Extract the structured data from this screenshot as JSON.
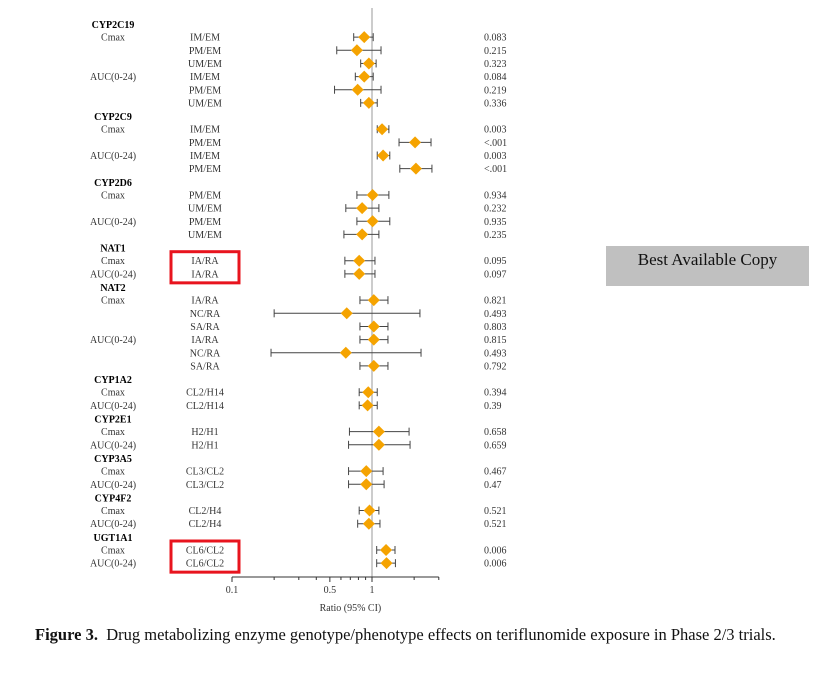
{
  "chart_data": {
    "type": "forest",
    "title": "",
    "xlabel": "Ratio (95% CI)",
    "xscale": "log",
    "xlim": [
      0.1,
      3
    ],
    "reference_line": 1,
    "x_tick_labels": [
      {
        "value": 0.1,
        "label": "0.1"
      },
      {
        "value": 0.5,
        "label": "0.5"
      },
      {
        "value": 1,
        "label": "1"
      }
    ],
    "x_minor_ticks": [
      0.2,
      0.3,
      0.4,
      0.6,
      0.7,
      0.8,
      0.9,
      2,
      3
    ],
    "groups": [
      {
        "gene": "CYP2C19",
        "rows": [
          {
            "param": "Cmax",
            "comparison": "IM/EM",
            "ratio": 0.88,
            "lo": 0.74,
            "hi": 1.02,
            "p": "0.083"
          },
          {
            "param": "",
            "comparison": "PM/EM",
            "ratio": 0.78,
            "lo": 0.56,
            "hi": 1.16,
            "p": "0.215"
          },
          {
            "param": "",
            "comparison": "UM/EM",
            "ratio": 0.95,
            "lo": 0.83,
            "hi": 1.07,
            "p": "0.323"
          },
          {
            "param": "AUC(0-24)",
            "comparison": "IM/EM",
            "ratio": 0.88,
            "lo": 0.76,
            "hi": 1.02,
            "p": "0.084"
          },
          {
            "param": "",
            "comparison": "PM/EM",
            "ratio": 0.79,
            "lo": 0.54,
            "hi": 1.16,
            "p": "0.219"
          },
          {
            "param": "",
            "comparison": "UM/EM",
            "ratio": 0.95,
            "lo": 0.83,
            "hi": 1.09,
            "p": "0.336"
          }
        ]
      },
      {
        "gene": "CYP2C9",
        "rows": [
          {
            "param": "Cmax",
            "comparison": "IM/EM",
            "ratio": 1.18,
            "lo": 1.09,
            "hi": 1.32,
            "p": "0.003"
          },
          {
            "param": "",
            "comparison": "PM/EM",
            "ratio": 2.03,
            "lo": 1.56,
            "hi": 2.64,
            "p": "<.001"
          },
          {
            "param": "AUC(0-24)",
            "comparison": "IM/EM",
            "ratio": 1.2,
            "lo": 1.09,
            "hi": 1.34,
            "p": "0.003"
          },
          {
            "param": "",
            "comparison": "PM/EM",
            "ratio": 2.06,
            "lo": 1.58,
            "hi": 2.68,
            "p": "<.001"
          }
        ]
      },
      {
        "gene": "CYP2D6",
        "rows": [
          {
            "param": "Cmax",
            "comparison": "PM/EM",
            "ratio": 1.01,
            "lo": 0.78,
            "hi": 1.32,
            "p": "0.934"
          },
          {
            "param": "",
            "comparison": "UM/EM",
            "ratio": 0.85,
            "lo": 0.65,
            "hi": 1.12,
            "p": "0.232"
          },
          {
            "param": "AUC(0-24)",
            "comparison": "PM/EM",
            "ratio": 1.01,
            "lo": 0.78,
            "hi": 1.34,
            "p": "0.935"
          },
          {
            "param": "",
            "comparison": "UM/EM",
            "ratio": 0.85,
            "lo": 0.63,
            "hi": 1.12,
            "p": "0.235"
          }
        ]
      },
      {
        "gene": "NAT1",
        "highlight": true,
        "rows": [
          {
            "param": "Cmax",
            "comparison": "IA/RA",
            "ratio": 0.81,
            "lo": 0.64,
            "hi": 1.05,
            "p": "0.095"
          },
          {
            "param": "AUC(0-24)",
            "comparison": "IA/RA",
            "ratio": 0.81,
            "lo": 0.64,
            "hi": 1.05,
            "p": "0.097"
          }
        ]
      },
      {
        "gene": "NAT2",
        "rows": [
          {
            "param": "Cmax",
            "comparison": "IA/RA",
            "ratio": 1.03,
            "lo": 0.82,
            "hi": 1.3,
            "p": "0.821"
          },
          {
            "param": "",
            "comparison": "NC/RA",
            "ratio": 0.66,
            "lo": 0.2,
            "hi": 2.2,
            "p": "0.493"
          },
          {
            "param": "",
            "comparison": "SA/RA",
            "ratio": 1.03,
            "lo": 0.82,
            "hi": 1.3,
            "p": "0.803"
          },
          {
            "param": "AUC(0-24)",
            "comparison": "IA/RA",
            "ratio": 1.03,
            "lo": 0.82,
            "hi": 1.3,
            "p": "0.815"
          },
          {
            "param": "",
            "comparison": "NC/RA",
            "ratio": 0.65,
            "lo": 0.19,
            "hi": 2.24,
            "p": "0.493"
          },
          {
            "param": "",
            "comparison": "SA/RA",
            "ratio": 1.03,
            "lo": 0.82,
            "hi": 1.3,
            "p": "0.792"
          }
        ]
      },
      {
        "gene": "CYP1A2",
        "rows": [
          {
            "param": "Cmax",
            "comparison": "CL2/H14",
            "ratio": 0.94,
            "lo": 0.81,
            "hi": 1.09,
            "p": "0.394"
          },
          {
            "param": "AUC(0-24)",
            "comparison": "CL2/H14",
            "ratio": 0.93,
            "lo": 0.81,
            "hi": 1.09,
            "p": "0.39"
          }
        ]
      },
      {
        "gene": "CYP2E1",
        "rows": [
          {
            "param": "Cmax",
            "comparison": "H2/H1",
            "ratio": 1.12,
            "lo": 0.69,
            "hi": 1.84,
            "p": "0.658"
          },
          {
            "param": "AUC(0-24)",
            "comparison": "H2/H1",
            "ratio": 1.12,
            "lo": 0.68,
            "hi": 1.87,
            "p": "0.659"
          }
        ]
      },
      {
        "gene": "CYP3A5",
        "rows": [
          {
            "param": "Cmax",
            "comparison": "CL3/CL2",
            "ratio": 0.91,
            "lo": 0.68,
            "hi": 1.2,
            "p": "0.467"
          },
          {
            "param": "AUC(0-24)",
            "comparison": "CL3/CL2",
            "ratio": 0.91,
            "lo": 0.68,
            "hi": 1.22,
            "p": "0.47"
          }
        ]
      },
      {
        "gene": "CYP4F2",
        "rows": [
          {
            "param": "Cmax",
            "comparison": "CL2/H4",
            "ratio": 0.96,
            "lo": 0.81,
            "hi": 1.12,
            "p": "0.521"
          },
          {
            "param": "AUC(0-24)",
            "comparison": "CL2/H4",
            "ratio": 0.95,
            "lo": 0.79,
            "hi": 1.14,
            "p": "0.521"
          }
        ]
      },
      {
        "gene": "UGT1A1",
        "highlight": true,
        "rows": [
          {
            "param": "Cmax",
            "comparison": "CL6/CL2",
            "ratio": 1.26,
            "lo": 1.08,
            "hi": 1.46,
            "p": "0.006"
          },
          {
            "param": "AUC(0-24)",
            "comparison": "CL6/CL2",
            "ratio": 1.27,
            "lo": 1.08,
            "hi": 1.47,
            "p": "0.006"
          }
        ]
      }
    ]
  },
  "colors": {
    "marker": "#f5a300",
    "whisker": "#444444",
    "reference_line": "#b0b0b0",
    "highlight_box": "#e8141e",
    "stamp_bg": "#c0c0c0"
  },
  "stamp": {
    "text": "Best Available Copy"
  },
  "caption": {
    "label": "Figure 3.",
    "text": "Drug metabolizing enzyme genotype/phenotype effects on teriflunomide exposure in Phase 2/3 trials."
  }
}
